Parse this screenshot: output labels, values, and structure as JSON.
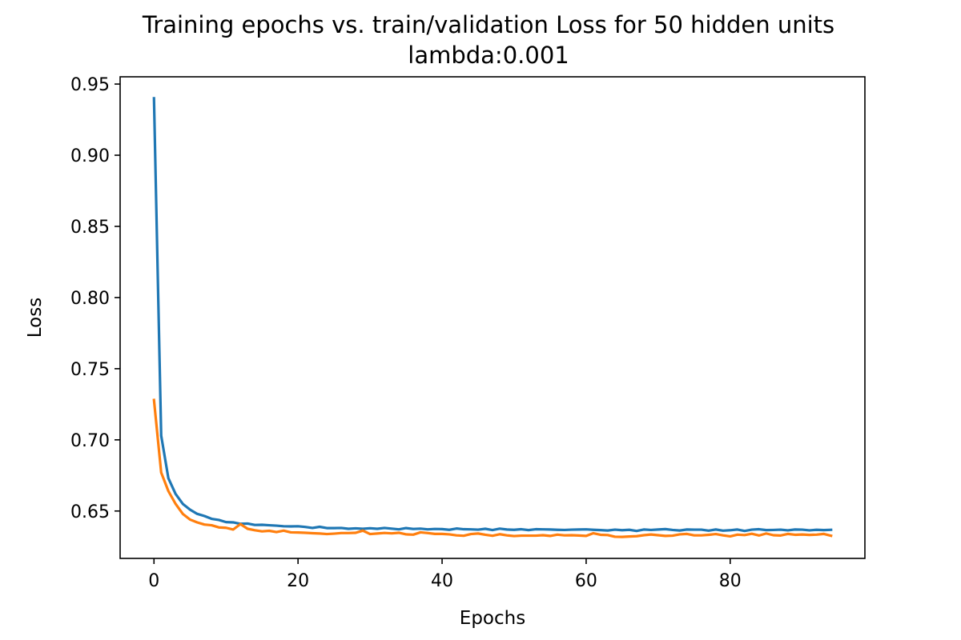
{
  "chart_data": {
    "type": "line",
    "title": "Training epochs vs. train/validation Loss for 50 hidden units",
    "subtitle": "lambda:0.001",
    "xlabel": "Epochs",
    "ylabel": "Loss",
    "xlim": [
      -4.7,
      98.7
    ],
    "ylim": [
      0.6167,
      0.9551
    ],
    "xticks": [
      0,
      20,
      40,
      60,
      80
    ],
    "xtick_labels": [
      "0",
      "20",
      "40",
      "60",
      "80"
    ],
    "yticks": [
      0.65,
      0.7,
      0.75,
      0.8,
      0.85,
      0.9,
      0.95
    ],
    "ytick_labels": [
      "0.65",
      "0.70",
      "0.75",
      "0.80",
      "0.85",
      "0.90",
      "0.95"
    ],
    "grid": false,
    "legend": "none",
    "x": [
      0,
      1,
      2,
      3,
      4,
      5,
      6,
      7,
      8,
      9,
      10,
      11,
      12,
      13,
      14,
      15,
      16,
      17,
      18,
      19,
      20,
      21,
      22,
      23,
      24,
      25,
      26,
      27,
      28,
      29,
      30,
      31,
      32,
      33,
      34,
      35,
      36,
      37,
      38,
      39,
      40,
      41,
      42,
      43,
      44,
      45,
      46,
      47,
      48,
      49,
      50,
      51,
      52,
      53,
      54,
      55,
      56,
      57,
      58,
      59,
      60,
      61,
      62,
      63,
      64,
      65,
      66,
      67,
      68,
      69,
      70,
      71,
      72,
      73,
      74,
      75,
      76,
      77,
      78,
      79,
      80,
      81,
      82,
      83,
      84,
      85,
      86,
      87,
      88,
      89,
      90,
      91,
      92,
      93,
      94
    ],
    "series": [
      {
        "color": "#1f77b4",
        "values": [
          0.94,
          0.703,
          0.673,
          0.662,
          0.655,
          0.651,
          0.648,
          0.6465,
          0.6445,
          0.6437,
          0.6422,
          0.642,
          0.641,
          0.6412,
          0.6402,
          0.6403,
          0.64,
          0.6397,
          0.6393,
          0.6392,
          0.6393,
          0.6388,
          0.6381,
          0.6389,
          0.638,
          0.638,
          0.6381,
          0.6375,
          0.6378,
          0.6375,
          0.6379,
          0.6375,
          0.6381,
          0.6376,
          0.6371,
          0.638,
          0.6374,
          0.6376,
          0.6371,
          0.6374,
          0.6373,
          0.6368,
          0.6377,
          0.6372,
          0.6371,
          0.6369,
          0.6375,
          0.6366,
          0.6376,
          0.637,
          0.6368,
          0.6372,
          0.6366,
          0.6372,
          0.6371,
          0.637,
          0.6368,
          0.6367,
          0.6369,
          0.637,
          0.6371,
          0.6368,
          0.6366,
          0.6363,
          0.6369,
          0.6365,
          0.6368,
          0.636,
          0.637,
          0.6367,
          0.637,
          0.6373,
          0.6367,
          0.6363,
          0.637,
          0.6369,
          0.6369,
          0.6362,
          0.637,
          0.6362,
          0.6365,
          0.637,
          0.636,
          0.6369,
          0.6372,
          0.6366,
          0.6367,
          0.6369,
          0.6364,
          0.637,
          0.6369,
          0.6364,
          0.6368,
          0.6366,
          0.6368
        ]
      },
      {
        "color": "#ff7f0e",
        "values": [
          0.728,
          0.677,
          0.664,
          0.655,
          0.648,
          0.644,
          0.642,
          0.6405,
          0.64,
          0.6385,
          0.6382,
          0.637,
          0.6408,
          0.6375,
          0.6365,
          0.6357,
          0.6361,
          0.6352,
          0.6362,
          0.635,
          0.6349,
          0.6347,
          0.6344,
          0.6342,
          0.6338,
          0.6341,
          0.6345,
          0.6345,
          0.6347,
          0.6362,
          0.6338,
          0.6342,
          0.6346,
          0.6343,
          0.6347,
          0.6336,
          0.6334,
          0.635,
          0.6345,
          0.6339,
          0.6339,
          0.6336,
          0.6329,
          0.6326,
          0.6338,
          0.6342,
          0.6333,
          0.6326,
          0.6337,
          0.6329,
          0.6324,
          0.6327,
          0.6327,
          0.6327,
          0.633,
          0.6325,
          0.6334,
          0.6329,
          0.633,
          0.6328,
          0.6325,
          0.6344,
          0.6333,
          0.6331,
          0.6319,
          0.6318,
          0.6321,
          0.6323,
          0.633,
          0.6335,
          0.633,
          0.6325,
          0.6327,
          0.6336,
          0.6339,
          0.6329,
          0.6329,
          0.6333,
          0.6338,
          0.6329,
          0.6322,
          0.6334,
          0.6331,
          0.634,
          0.6328,
          0.6342,
          0.633,
          0.6328,
          0.6339,
          0.6333,
          0.6335,
          0.6332,
          0.6334,
          0.6339,
          0.6326
        ]
      }
    ]
  }
}
